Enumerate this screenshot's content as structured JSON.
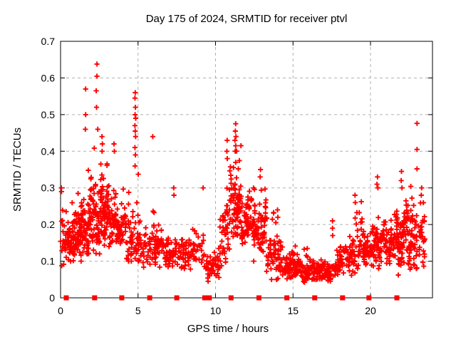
{
  "window": {
    "background": "#ffffff"
  },
  "chart_data": {
    "type": "scatter",
    "title": "Day 175 of 2024, SRMTID for receiver ptvl",
    "xlabel": "GPS time / hours",
    "ylabel": "SRMTID / TECUs",
    "xlim": [
      0,
      24
    ],
    "ylim": [
      0,
      0.7
    ],
    "xticks": [
      0,
      5,
      10,
      15,
      20
    ],
    "xtick_labels": [
      "0",
      "5",
      "10",
      "15",
      "20"
    ],
    "yticks": [
      0,
      0.1,
      0.2,
      0.3,
      0.4,
      0.5,
      0.6,
      0.7
    ],
    "ytick_labels": [
      "0",
      "0.1",
      "0.2",
      "0.3",
      "0.4",
      "0.5",
      "0.6",
      "0.7"
    ],
    "grid": true,
    "legend": "none",
    "marker": {
      "shape": "plus",
      "color": "#ff0000",
      "size": 7
    },
    "colors": {
      "points": "#ff0000",
      "grid": "#b0b0b0",
      "border": "#000000"
    },
    "baseline_markers": {
      "shape": "filled-square",
      "color": "#ff0000",
      "y": 0,
      "hours": [
        0.37,
        2.2,
        3.95,
        5.75,
        7.5,
        9.3,
        9.45,
        9.6,
        11.0,
        12.8,
        14.6,
        16.4,
        18.2,
        19.9,
        21.7
      ]
    },
    "notable_points": [
      [
        0.05,
        0.3
      ],
      [
        0.06,
        0.29
      ],
      [
        1.62,
        0.57
      ],
      [
        1.62,
        0.5
      ],
      [
        1.6,
        0.46
      ],
      [
        2.3,
        0.565
      ],
      [
        2.35,
        0.638
      ],
      [
        2.35,
        0.605
      ],
      [
        2.32,
        0.52
      ],
      [
        2.4,
        0.46
      ],
      [
        2.67,
        0.44
      ],
      [
        2.7,
        0.42
      ],
      [
        2.68,
        0.4
      ],
      [
        3.45,
        0.42
      ],
      [
        3.47,
        0.4
      ],
      [
        4.82,
        0.56
      ],
      [
        4.8,
        0.545
      ],
      [
        4.83,
        0.52
      ],
      [
        4.81,
        0.5
      ],
      [
        4.85,
        0.49
      ],
      [
        4.8,
        0.47
      ],
      [
        4.82,
        0.455
      ],
      [
        4.84,
        0.44
      ],
      [
        4.8,
        0.41
      ],
      [
        4.83,
        0.39
      ],
      [
        4.81,
        0.36
      ],
      [
        5.95,
        0.44
      ],
      [
        7.3,
        0.3
      ],
      [
        7.32,
        0.28
      ],
      [
        9.2,
        0.3
      ],
      [
        10.75,
        0.43
      ],
      [
        10.73,
        0.4
      ],
      [
        10.76,
        0.38
      ],
      [
        11.3,
        0.475
      ],
      [
        11.28,
        0.455
      ],
      [
        11.32,
        0.44
      ],
      [
        11.25,
        0.43
      ],
      [
        11.3,
        0.415
      ],
      [
        11.27,
        0.4
      ],
      [
        12.9,
        0.35
      ],
      [
        12.88,
        0.33
      ],
      [
        14.0,
        0.24
      ],
      [
        14.02,
        0.22
      ],
      [
        17.55,
        0.21
      ],
      [
        17.55,
        0.19
      ],
      [
        17.56,
        0.17
      ],
      [
        19.0,
        0.28
      ],
      [
        19.02,
        0.26
      ],
      [
        20.45,
        0.33
      ],
      [
        20.42,
        0.31
      ],
      [
        20.48,
        0.3
      ],
      [
        22.0,
        0.345
      ],
      [
        21.98,
        0.32
      ],
      [
        22.03,
        0.3
      ],
      [
        23.0,
        0.476
      ],
      [
        23.0,
        0.405
      ],
      [
        23.0,
        0.352
      ],
      [
        23.3,
        0.3
      ],
      [
        23.28,
        0.28
      ]
    ],
    "density_clusters": [
      {
        "x0": 0.0,
        "x1": 0.5,
        "n": 40,
        "ymin": 0.07,
        "ymax": 0.3,
        "mode": 0.17
      },
      {
        "x0": 0.5,
        "x1": 1.0,
        "n": 55,
        "ymin": 0.1,
        "ymax": 0.27,
        "mode": 0.16
      },
      {
        "x0": 1.0,
        "x1": 1.5,
        "n": 60,
        "ymin": 0.1,
        "ymax": 0.33,
        "mode": 0.18
      },
      {
        "x0": 1.5,
        "x1": 1.9,
        "n": 45,
        "ymin": 0.12,
        "ymax": 0.44,
        "mode": 0.2
      },
      {
        "x0": 1.9,
        "x1": 2.6,
        "n": 75,
        "ymin": 0.12,
        "ymax": 0.47,
        "mode": 0.22
      },
      {
        "x0": 2.6,
        "x1": 3.1,
        "n": 55,
        "ymin": 0.13,
        "ymax": 0.4,
        "mode": 0.22
      },
      {
        "x0": 3.1,
        "x1": 4.2,
        "n": 90,
        "ymin": 0.13,
        "ymax": 0.33,
        "mode": 0.21
      },
      {
        "x0": 4.2,
        "x1": 5.2,
        "n": 60,
        "ymin": 0.1,
        "ymax": 0.38,
        "mode": 0.18
      },
      {
        "x0": 5.2,
        "x1": 6.5,
        "n": 75,
        "ymin": 0.08,
        "ymax": 0.25,
        "mode": 0.14
      },
      {
        "x0": 6.5,
        "x1": 8.0,
        "n": 85,
        "ymin": 0.08,
        "ymax": 0.22,
        "mode": 0.13
      },
      {
        "x0": 8.0,
        "x1": 9.3,
        "n": 55,
        "ymin": 0.06,
        "ymax": 0.2,
        "mode": 0.12
      },
      {
        "x0": 9.3,
        "x1": 10.3,
        "n": 50,
        "ymin": 0.04,
        "ymax": 0.15,
        "mode": 0.09
      },
      {
        "x0": 10.3,
        "x1": 10.9,
        "n": 45,
        "ymin": 0.06,
        "ymax": 0.35,
        "mode": 0.16
      },
      {
        "x0": 10.9,
        "x1": 11.7,
        "n": 85,
        "ymin": 0.1,
        "ymax": 0.45,
        "mode": 0.26
      },
      {
        "x0": 11.7,
        "x1": 12.5,
        "n": 80,
        "ymin": 0.1,
        "ymax": 0.33,
        "mode": 0.2
      },
      {
        "x0": 12.5,
        "x1": 13.3,
        "n": 70,
        "ymin": 0.12,
        "ymax": 0.33,
        "mode": 0.2
      },
      {
        "x0": 13.3,
        "x1": 14.3,
        "n": 60,
        "ymin": 0.05,
        "ymax": 0.28,
        "mode": 0.12
      },
      {
        "x0": 14.3,
        "x1": 16.0,
        "n": 110,
        "ymin": 0.04,
        "ymax": 0.16,
        "mode": 0.085
      },
      {
        "x0": 16.0,
        "x1": 17.8,
        "n": 110,
        "ymin": 0.03,
        "ymax": 0.12,
        "mode": 0.07
      },
      {
        "x0": 17.8,
        "x1": 19.0,
        "n": 80,
        "ymin": 0.05,
        "ymax": 0.18,
        "mode": 0.1
      },
      {
        "x0": 19.0,
        "x1": 20.6,
        "n": 100,
        "ymin": 0.08,
        "ymax": 0.28,
        "mode": 0.14
      },
      {
        "x0": 20.6,
        "x1": 21.6,
        "n": 70,
        "ymin": 0.08,
        "ymax": 0.25,
        "mode": 0.15
      },
      {
        "x0": 21.6,
        "x1": 22.6,
        "n": 90,
        "ymin": 0.05,
        "ymax": 0.34,
        "mode": 0.17
      },
      {
        "x0": 22.6,
        "x1": 23.5,
        "n": 70,
        "ymin": 0.03,
        "ymax": 0.3,
        "mode": 0.16
      }
    ]
  }
}
